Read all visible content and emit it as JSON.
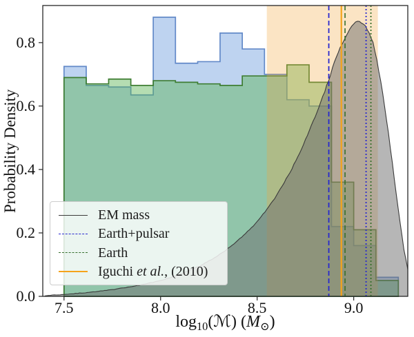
{
  "chart_data": {
    "type": "mixed",
    "title": "",
    "xlabel": "log10(ℳ) (M⊙)",
    "xlabel_parts": [
      {
        "t": "log",
        "s": "up"
      },
      {
        "t": "10",
        "s": "sub"
      },
      {
        "t": "(",
        "s": "up"
      },
      {
        "t": "ℳ",
        "s": "it"
      },
      {
        "t": ") (",
        "s": "up"
      },
      {
        "t": "M",
        "s": "it"
      },
      {
        "t": "⊙",
        "s": "sub"
      },
      {
        "t": ")",
        "s": "up"
      }
    ],
    "ylabel": "Probability Density",
    "xlim": [
      7.39,
      9.28
    ],
    "ylim": [
      0,
      0.917
    ],
    "xticks": [
      7.5,
      8.0,
      8.5,
      9.0
    ],
    "xtick_labels": [
      "7.5",
      "8.0",
      "8.5",
      "9.0"
    ],
    "yticks": [
      0.0,
      0.2,
      0.4,
      0.6,
      0.8
    ],
    "ytick_labels": [
      "0.0",
      "0.2",
      "0.4",
      "0.6",
      "0.8"
    ],
    "grid": false,
    "legend_position": "lower left",
    "series": [
      {
        "name": "Earth+pulsar",
        "type": "step_histogram",
        "edge_color": "#6289c8",
        "fill_color": "rgba(100,150,220,0.42)",
        "bin_edges": [
          7.5,
          7.615,
          7.731,
          7.846,
          7.962,
          8.077,
          8.192,
          8.308,
          8.423,
          8.538,
          8.654,
          8.769,
          8.885,
          9.0,
          9.115,
          9.231
        ],
        "densities": [
          0.725,
          0.665,
          0.66,
          0.635,
          0.88,
          0.735,
          0.74,
          0.83,
          0.78,
          0.7,
          0.62,
          0.6,
          0.22,
          0.16,
          0.06
        ]
      },
      {
        "name": "Earth",
        "type": "step_histogram",
        "edge_color": "#3e7d32",
        "fill_color": "rgba(90,180,85,0.45)",
        "bin_edges": [
          7.5,
          7.615,
          7.731,
          7.846,
          7.962,
          8.077,
          8.192,
          8.308,
          8.423,
          8.538,
          8.654,
          8.769,
          8.885,
          9.0,
          9.115,
          9.231
        ],
        "densities": [
          0.69,
          0.67,
          0.685,
          0.665,
          0.68,
          0.675,
          0.67,
          0.665,
          0.695,
          0.695,
          0.73,
          0.675,
          0.36,
          0.21,
          0.05
        ]
      },
      {
        "name": "Iguchi et al., (2010)",
        "type": "vspan",
        "x_start": 8.55,
        "x_end": 9.125,
        "color": "rgba(243,164,60,0.3)"
      },
      {
        "name": "EM mass",
        "type": "line",
        "line_color": "#3a3a3a",
        "fill_color": "rgba(110,110,110,0.5)",
        "points": [
          [
            7.4,
            0.002
          ],
          [
            7.44,
            0.004
          ],
          [
            7.48,
            0.005
          ],
          [
            7.52,
            0.007
          ],
          [
            7.56,
            0.009
          ],
          [
            7.6,
            0.011
          ],
          [
            7.64,
            0.013
          ],
          [
            7.68,
            0.016
          ],
          [
            7.72,
            0.019
          ],
          [
            7.76,
            0.022
          ],
          [
            7.8,
            0.026
          ],
          [
            7.84,
            0.03
          ],
          [
            7.88,
            0.034
          ],
          [
            7.92,
            0.039
          ],
          [
            7.96,
            0.044
          ],
          [
            8.0,
            0.05
          ],
          [
            8.04,
            0.057
          ],
          [
            8.08,
            0.065
          ],
          [
            8.12,
            0.074
          ],
          [
            8.16,
            0.084
          ],
          [
            8.2,
            0.095
          ],
          [
            8.24,
            0.108
          ],
          [
            8.28,
            0.122
          ],
          [
            8.32,
            0.138
          ],
          [
            8.36,
            0.156
          ],
          [
            8.4,
            0.176
          ],
          [
            8.44,
            0.198
          ],
          [
            8.48,
            0.222
          ],
          [
            8.52,
            0.25
          ],
          [
            8.56,
            0.282
          ],
          [
            8.6,
            0.318
          ],
          [
            8.64,
            0.358
          ],
          [
            8.68,
            0.403
          ],
          [
            8.72,
            0.453
          ],
          [
            8.76,
            0.508
          ],
          [
            8.8,
            0.567
          ],
          [
            8.84,
            0.63
          ],
          [
            8.87,
            0.68
          ],
          [
            8.9,
            0.737
          ],
          [
            8.93,
            0.785
          ],
          [
            8.96,
            0.822
          ],
          [
            8.98,
            0.843
          ],
          [
            9.0,
            0.858
          ],
          [
            9.02,
            0.868
          ],
          [
            9.04,
            0.865
          ],
          [
            9.06,
            0.852
          ],
          [
            9.08,
            0.832
          ],
          [
            9.1,
            0.798
          ],
          [
            9.12,
            0.745
          ],
          [
            9.14,
            0.678
          ],
          [
            9.16,
            0.6
          ],
          [
            9.18,
            0.513
          ],
          [
            9.2,
            0.42
          ],
          [
            9.22,
            0.325
          ],
          [
            9.24,
            0.232
          ],
          [
            9.26,
            0.148
          ],
          [
            9.28,
            0.085
          ]
        ]
      }
    ],
    "vlines": [
      {
        "x": 8.871,
        "color": "#2727cf",
        "style": "dashed",
        "width": 1.8
      },
      {
        "x": 8.936,
        "color": "#f5a31a",
        "style": "solid",
        "width": 2.2
      },
      {
        "x": 8.955,
        "color": "#356e2c",
        "style": "dashed",
        "width": 1.6
      },
      {
        "x": 9.064,
        "color": "#2727cf",
        "style": "dotted",
        "width": 1.8
      },
      {
        "x": 9.089,
        "color": "#356e2c",
        "style": "dotted",
        "width": 1.8
      }
    ]
  },
  "legend": {
    "items": [
      {
        "label": "EM mass",
        "swatch": {
          "color": "#3a3a3a",
          "dash": "solid",
          "width": 1.6
        }
      },
      {
        "label": "Earth+pulsar",
        "swatch": {
          "color": "#2727cf",
          "dash": "dashed",
          "width": 1.8
        }
      },
      {
        "label": "Earth",
        "swatch": {
          "color": "#356e2c",
          "dash": "dashed",
          "width": 1.8
        }
      },
      {
        "label": "Iguchi et al., (2010)",
        "label_parts": [
          {
            "t": "Iguchi ",
            "i": false
          },
          {
            "t": "et al.",
            "i": true
          },
          {
            "t": ", (2010)",
            "i": false
          }
        ],
        "swatch": {
          "color": "#f5a31a",
          "dash": "solid",
          "width": 2.2
        }
      }
    ]
  },
  "colors": {
    "spine": "#262626",
    "background": "#ffffff"
  }
}
